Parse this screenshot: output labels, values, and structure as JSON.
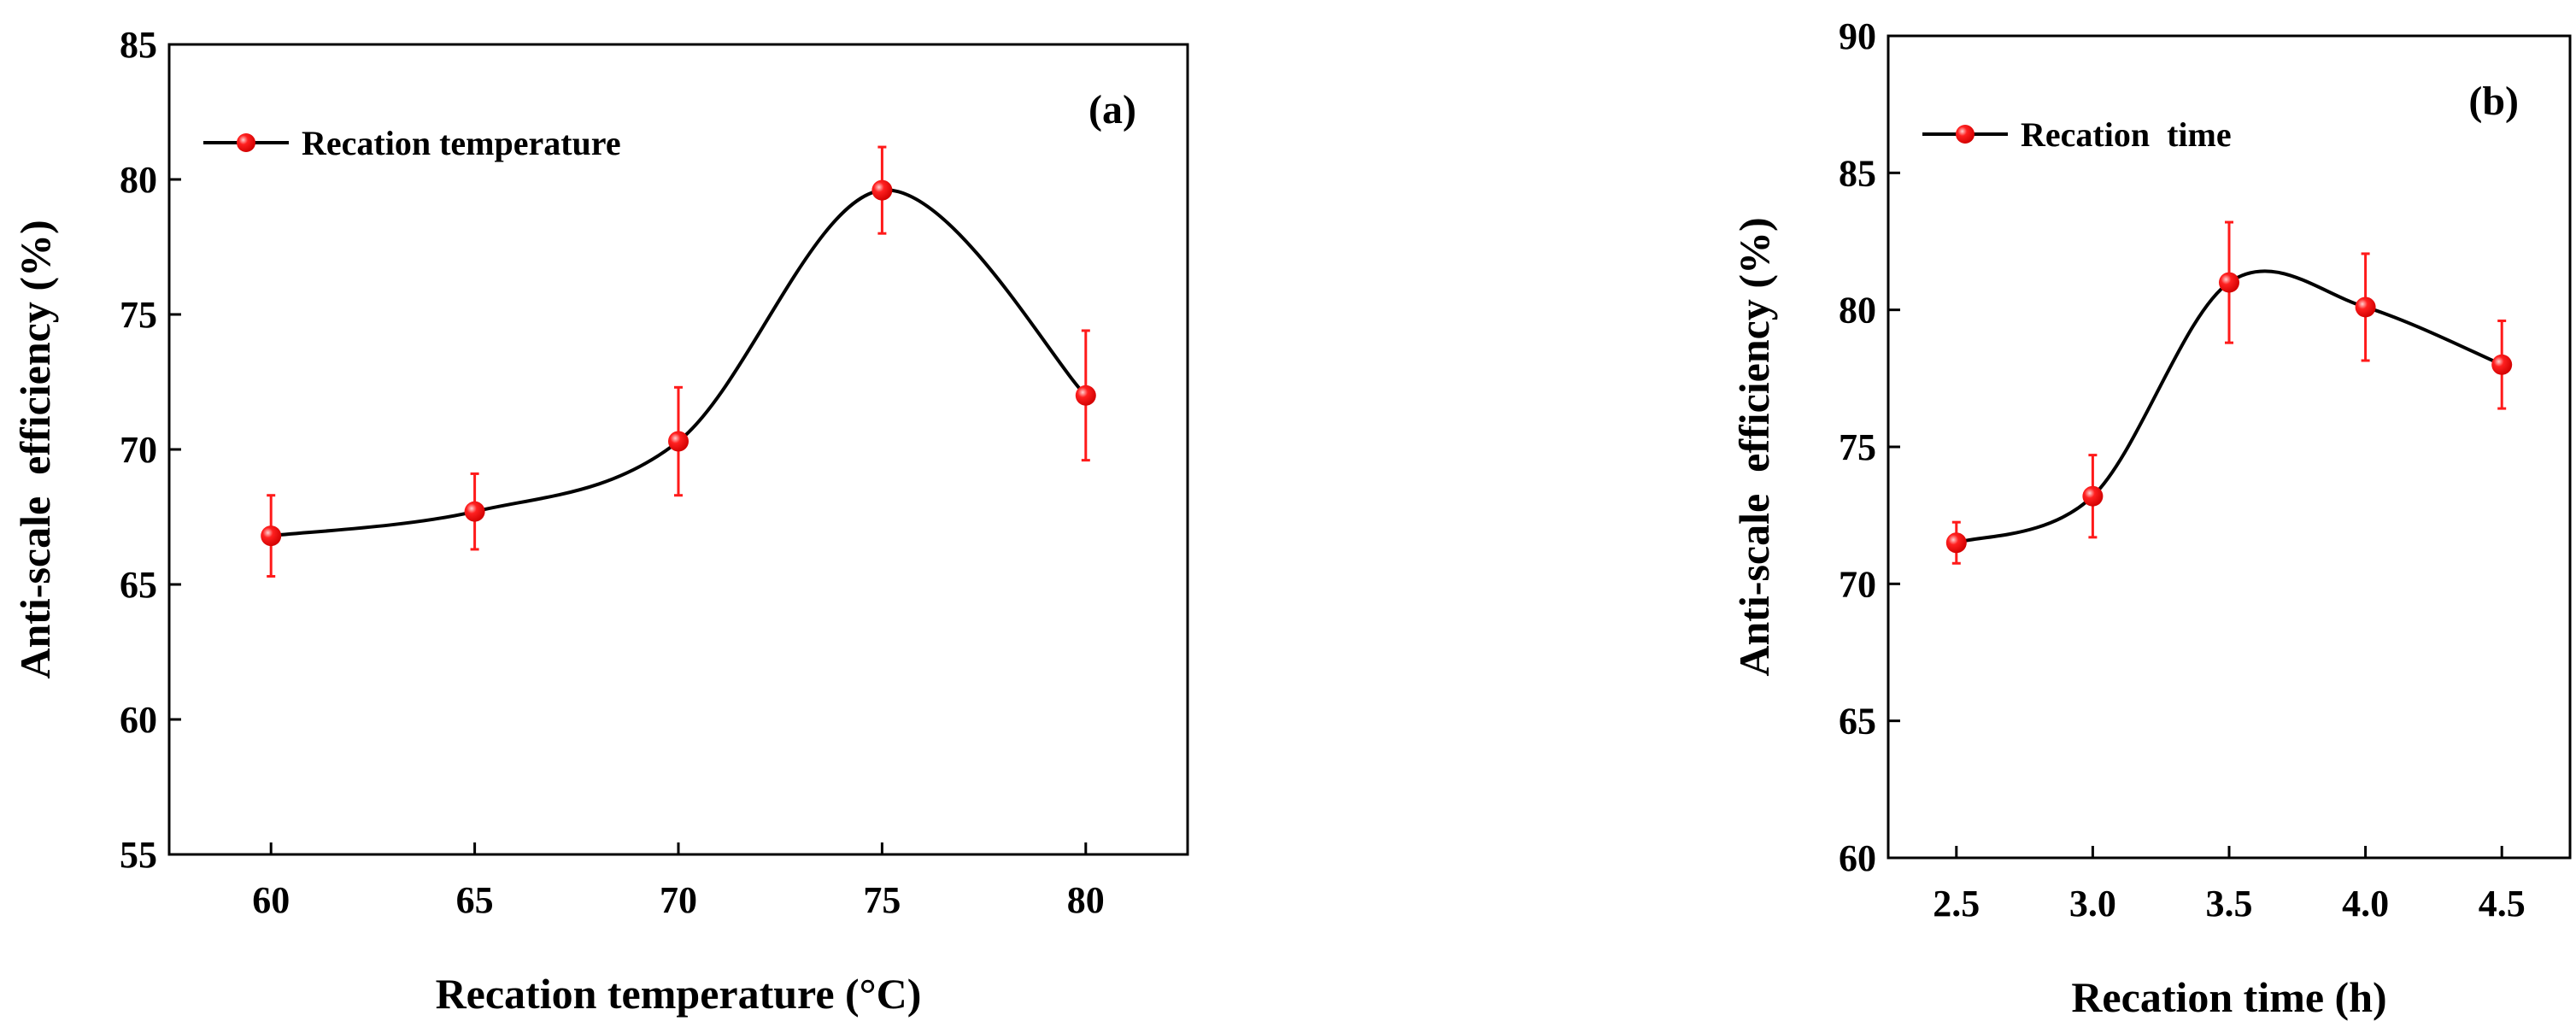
{
  "chart_data": [
    {
      "type": "line",
      "panel_label": "(a)",
      "title": "",
      "xlabel": "Recation temperature (°C)",
      "ylabel": "Anti-scale  efficiency (%)",
      "legend": {
        "label": "Recation temperature",
        "placement": "top-left"
      },
      "x": [
        60,
        65,
        70,
        75,
        80
      ],
      "x_tick_labels": [
        "60",
        "65",
        "70",
        "75",
        "80"
      ],
      "xlim": [
        57.5,
        82.5
      ],
      "ylim": [
        55,
        85
      ],
      "y_ticks": [
        55,
        60,
        65,
        70,
        75,
        80,
        85
      ],
      "y_tick_labels": [
        "55",
        "60",
        "65",
        "70",
        "75",
        "80",
        "85"
      ],
      "series": [
        {
          "name": "Recation temperature",
          "values": [
            66.8,
            67.7,
            70.3,
            79.6,
            72.0
          ],
          "errors": [
            1.5,
            1.4,
            2.0,
            1.6,
            2.4
          ]
        }
      ],
      "grid": false,
      "colors": {
        "line": "#000000",
        "marker": "#ff1a1a",
        "error": "#ff1a1a"
      }
    },
    {
      "type": "line",
      "panel_label": "(b)",
      "title": "",
      "xlabel": "Recation time (h)",
      "ylabel": "Anti-scale  efficiency (%)",
      "legend": {
        "label": "Recation  time",
        "placement": "top-left"
      },
      "x": [
        2.5,
        3.0,
        3.5,
        4.0,
        4.5
      ],
      "x_tick_labels": [
        "2.5",
        "3.0",
        "3.5",
        "4.0",
        "4.5"
      ],
      "xlim": [
        2.25,
        4.75
      ],
      "ylim": [
        60,
        90
      ],
      "y_ticks": [
        60,
        65,
        70,
        75,
        80,
        85,
        90
      ],
      "y_tick_labels": [
        "60",
        "65",
        "70",
        "75",
        "80",
        "85",
        "90"
      ],
      "series": [
        {
          "name": "Recation  time",
          "values": [
            71.5,
            73.2,
            81.0,
            80.1,
            78.0
          ],
          "errors": [
            0.75,
            1.5,
            2.2,
            1.95,
            1.6
          ]
        }
      ],
      "grid": false,
      "colors": {
        "line": "#000000",
        "marker": "#ff1a1a",
        "error": "#ff1a1a"
      }
    }
  ]
}
